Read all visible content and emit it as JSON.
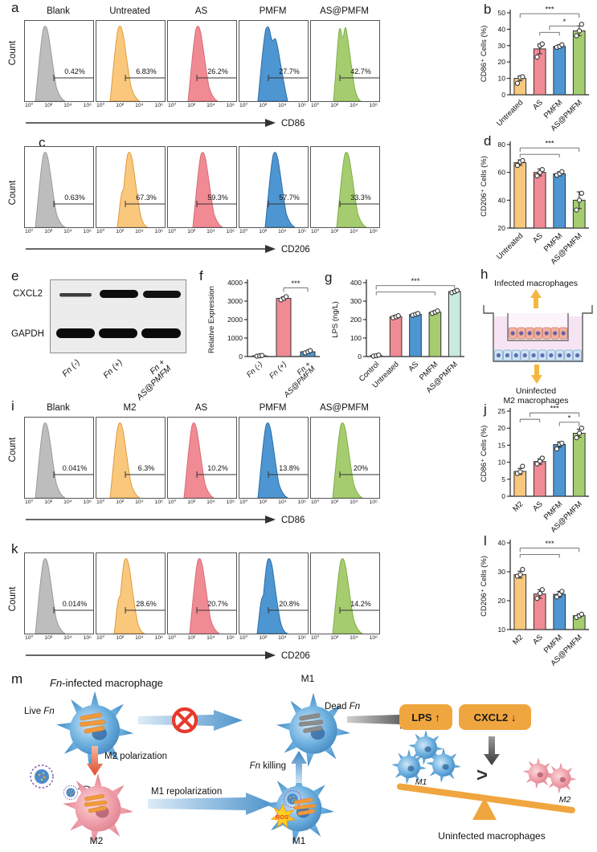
{
  "palette": {
    "gray": "#bdbdbd",
    "grayStroke": "#9a9a9a",
    "orange": "#f9c87d",
    "orangeStroke": "#e09b3d",
    "red": "#f08b94",
    "redStroke": "#d96b77",
    "blue": "#4e96d2",
    "blueStroke": "#2b6ea8",
    "green": "#a5cd70",
    "greenStroke": "#7fae45",
    "mint": "#c9eadf",
    "mintStroke": "#94cbb9",
    "lightgray": "#d9d9d9",
    "lightgrayStroke": "#aaaaaa",
    "white": "#ffffff",
    "whiteStroke": "#333333",
    "accent_orange": "#f0a63e",
    "arrow_yellow": "#f5b63f",
    "prohibition_red": "#e8392b"
  },
  "chart_data": [
    {
      "id": "a",
      "panel_label": "a",
      "type": "flow",
      "ylabel": "Count",
      "marker": "CD86",
      "xticks": [
        "10⁰",
        "10²",
        "10⁴",
        "10⁶"
      ],
      "series": [
        {
          "title": "Blank",
          "percent": "0.42%",
          "color": "gray",
          "shape": "single",
          "peak": 26
        },
        {
          "title": "Untreated",
          "percent": "6.83%",
          "color": "orange",
          "shape": "single",
          "peak": 30
        },
        {
          "title": "AS",
          "percent": "26.2%",
          "color": "red",
          "shape": "single",
          "peak": 38
        },
        {
          "title": "PMFM",
          "percent": "27.7%",
          "color": "blue",
          "shape": "double",
          "peak": 37
        },
        {
          "title": "AS@PMFM",
          "percent": "42.7%",
          "color": "green",
          "shape": "notched",
          "peak": 41
        }
      ]
    },
    {
      "id": "b",
      "panel_label": "b",
      "type": "bar",
      "ylabel": "CD86⁺ Cells  (%)",
      "ylim": [
        0,
        50
      ],
      "yticks": [
        0,
        10,
        20,
        30,
        40,
        50
      ],
      "categories": [
        "Untreated",
        "AS",
        "PMFM",
        "AS@PMFM"
      ],
      "values": [
        10,
        28,
        29.5,
        39
      ],
      "errors": [
        1.5,
        3,
        1,
        3
      ],
      "points": [
        [
          7,
          10.5,
          11
        ],
        [
          23,
          30,
          31
        ],
        [
          29,
          29.5,
          30.5
        ],
        [
          36,
          39,
          43
        ]
      ],
      "colors": [
        "orange",
        "red",
        "blue",
        "green"
      ],
      "sig": [
        {
          "label": "***",
          "main": [
            0,
            3
          ],
          "h": 0.99
        },
        {
          "label": "*",
          "main": [
            1.5,
            3
          ],
          "sub": [
            1,
            2
          ],
          "h": 0.84
        }
      ]
    },
    {
      "id": "c",
      "panel_label": "c",
      "type": "flow",
      "ylabel": "Count",
      "marker": "CD206",
      "xticks": [
        "10⁰",
        "10²",
        "10⁴",
        "10⁶"
      ],
      "series": [
        {
          "title": "",
          "percent": "0.63%",
          "color": "gray",
          "shape": "single",
          "peak": 26
        },
        {
          "title": "",
          "percent": "67.3%",
          "color": "orange",
          "shape": "shoulder",
          "peak": 42
        },
        {
          "title": "",
          "percent": "59.3%",
          "color": "red",
          "shape": "single",
          "peak": 44
        },
        {
          "title": "",
          "percent": "57.7%",
          "color": "blue",
          "shape": "single",
          "peak": 45
        },
        {
          "title": "",
          "percent": "33.3%",
          "color": "green",
          "shape": "single",
          "peak": 45
        }
      ]
    },
    {
      "id": "d",
      "panel_label": "d",
      "type": "bar",
      "ylabel": "CD206⁺ Cells  (%)",
      "ylim": [
        20,
        80
      ],
      "yticks": [
        20,
        40,
        60,
        80
      ],
      "categories": [
        "Untreated",
        "AS",
        "PMFM",
        "AS@PMFM"
      ],
      "values": [
        67,
        60,
        59,
        40
      ],
      "errors": [
        2,
        2.5,
        1.5,
        6
      ],
      "points": [
        [
          65,
          67.5,
          68.5
        ],
        [
          57.5,
          60,
          62
        ],
        [
          58,
          59,
          60.5
        ],
        [
          33,
          40,
          45
        ]
      ],
      "colors": [
        "orange",
        "red",
        "blue",
        "green"
      ],
      "sig": [
        {
          "label": "***",
          "main": [
            0,
            3
          ],
          "sub": [
            0,
            2
          ],
          "h": 0.96
        }
      ]
    },
    {
      "id": "f",
      "panel_label": "f",
      "type": "bar",
      "ylabel": "Relative Expression",
      "ylim": [
        0,
        4000
      ],
      "yticks": [
        0,
        1000,
        2000,
        3000,
        4000
      ],
      "italic": true,
      "categories": [
        "Fn (-)",
        "Fn (+)",
        [
          "Fn +",
          "AS@PMFM"
        ]
      ],
      "values": [
        40,
        3150,
        260
      ],
      "errors": [
        15,
        90,
        50
      ],
      "points": [
        [
          20,
          40,
          60
        ],
        [
          3070,
          3150,
          3240
        ],
        [
          200,
          260,
          320
        ]
      ],
      "colors": [
        "lightgray",
        "red",
        "blue"
      ],
      "sig": [
        {
          "label": "***",
          "main": [
            1,
            2
          ],
          "h": 0.93
        }
      ]
    },
    {
      "id": "g",
      "panel_label": "g",
      "type": "bar",
      "ylabel": "LPS (ng/L)",
      "ylim": [
        0,
        400
      ],
      "yticks": [
        0,
        100,
        200,
        300,
        400
      ],
      "categories": [
        "Control",
        "Untreated",
        "AS",
        "PMFM",
        "AS@PMFM"
      ],
      "values": [
        5,
        215,
        228,
        240,
        352
      ],
      "errors": [
        3,
        8,
        6,
        8,
        7
      ],
      "points": [
        [
          2,
          5,
          8
        ],
        [
          210,
          215,
          221
        ],
        [
          224,
          228,
          233
        ],
        [
          234,
          240,
          247
        ],
        [
          346,
          352,
          358
        ]
      ],
      "colors": [
        "white",
        "red",
        "blue",
        "green",
        "mint"
      ],
      "sig": [
        {
          "label": "***",
          "main": [
            0,
            4
          ],
          "sub": [
            0,
            3
          ],
          "h": 0.96
        }
      ]
    },
    {
      "id": "i",
      "panel_label": "i",
      "type": "flow",
      "ylabel": "Count",
      "marker": "CD86",
      "xticks": [
        "10⁰",
        "10²",
        "10⁴",
        "10⁶"
      ],
      "series": [
        {
          "title": "Blank",
          "percent": "0.041%",
          "color": "gray",
          "shape": "single",
          "peak": 26
        },
        {
          "title": "M2",
          "percent": "6.3%",
          "color": "orange",
          "shape": "single",
          "peak": 30
        },
        {
          "title": "AS",
          "percent": "10.2%",
          "color": "red",
          "shape": "single",
          "peak": 33
        },
        {
          "title": "PMFM",
          "percent": "13.8%",
          "color": "blue",
          "shape": "single",
          "peak": 36
        },
        {
          "title": "AS@PMFM",
          "percent": "20%",
          "color": "green",
          "shape": "single",
          "peak": 40
        }
      ]
    },
    {
      "id": "j",
      "panel_label": "j",
      "type": "bar",
      "ylabel": "CD86⁺ Cells  (%)",
      "ylim": [
        0,
        25
      ],
      "yticks": [
        0,
        5,
        10,
        15,
        20,
        25
      ],
      "categories": [
        "M2",
        "AS",
        "PMFM",
        "AS@PMFM"
      ],
      "values": [
        7.3,
        10.2,
        15.2,
        18.5
      ],
      "errors": [
        0.9,
        0.8,
        0.8,
        1.2
      ],
      "points": [
        [
          6.7,
          7.2,
          8.8
        ],
        [
          9.5,
          10.3,
          11.2
        ],
        [
          13.9,
          15.3,
          15.6
        ],
        [
          17.2,
          18.5,
          20
        ]
      ],
      "colors": [
        "orange",
        "red",
        "blue",
        "green"
      ],
      "sig": [
        {
          "label": "***",
          "main": [
            0.5,
            3
          ],
          "sub": [
            0,
            1
          ],
          "h": 0.98
        },
        {
          "label": "*",
          "main": [
            2,
            3
          ],
          "h": 0.87
        }
      ]
    },
    {
      "id": "k",
      "panel_label": "k",
      "type": "flow",
      "ylabel": "Count",
      "marker": "CD206",
      "xticks": [
        "10⁰",
        "10²",
        "10⁴",
        "10⁶"
      ],
      "series": [
        {
          "title": "",
          "percent": "0.014%",
          "color": "gray",
          "shape": "single",
          "peak": 26
        },
        {
          "title": "",
          "percent": "28.6%",
          "color": "orange",
          "shape": "shoulder",
          "peak": 38
        },
        {
          "title": "",
          "percent": "20.7%",
          "color": "red",
          "shape": "single",
          "peak": 40
        },
        {
          "title": "",
          "percent": "20.8%",
          "color": "blue",
          "shape": "shoulder",
          "peak": 38
        },
        {
          "title": "",
          "percent": "14.2%",
          "color": "green",
          "shape": "single",
          "peak": 40
        }
      ]
    },
    {
      "id": "l",
      "panel_label": "l",
      "type": "bar",
      "ylabel": "CD206⁺ Cells  (%)",
      "ylim": [
        10,
        40
      ],
      "yticks": [
        10,
        20,
        30,
        40
      ],
      "categories": [
        "M2",
        "AS",
        "PMFM",
        "AS@PMFM"
      ],
      "values": [
        29,
        22.3,
        22.2,
        14.8
      ],
      "errors": [
        1.2,
        1.5,
        1,
        0.6
      ],
      "points": [
        [
          28.5,
          29,
          30.8
        ],
        [
          20.8,
          22.5,
          23.8
        ],
        [
          21.3,
          22.2,
          23.2
        ],
        [
          14.2,
          14.8,
          15.3
        ]
      ],
      "colors": [
        "orange",
        "red",
        "blue",
        "green"
      ],
      "sig": [
        {
          "label": "***",
          "main": [
            0,
            3
          ],
          "sub": [
            0,
            2
          ],
          "h": 0.94
        }
      ]
    }
  ],
  "figure": {
    "panel_letters": {
      "a": "a",
      "b": "b",
      "c": "c",
      "d": "d",
      "e": "e",
      "f": "f",
      "g": "g",
      "h": "h",
      "i": "i",
      "j": "j",
      "k": "k",
      "l": "l",
      "m": "m"
    },
    "blot": {
      "band_labels": [
        "CXCL2",
        "GAPDH"
      ],
      "lane_labels": [
        [
          "Fn (-)"
        ],
        [
          "Fn (+)"
        ],
        [
          "Fn +",
          "AS@PMFM"
        ]
      ]
    },
    "transwell": {
      "top": "Infected macrophages",
      "bottom_line1": "Uninfected",
      "bottom_line2": "M2 macrophages"
    },
    "schematic": {
      "title_fn": "Fn",
      "title_rest": "-infected macrophage",
      "live_prefix": "Live ",
      "live_fn": "Fn",
      "dead_prefix": "Dead ",
      "dead_fn": "Fn",
      "m1_top_label": "M1",
      "m2_polarization": "M2 polarization",
      "m1_repolarization": "M1 repolarization",
      "fn_killing_fn": "Fn",
      "fn_killing_rest": " killing",
      "m2_cell_label": "M2",
      "m1_cell_label": "M1",
      "lps_box": "LPS ↑",
      "cxcl2_box": "CXCL2 ↓",
      "greater_symbol": ">",
      "ros_label": "ROS",
      "m1_group_label": "M1",
      "m2_group_label": "M2",
      "uninfected_label": "Uninfected  macrophages"
    }
  }
}
